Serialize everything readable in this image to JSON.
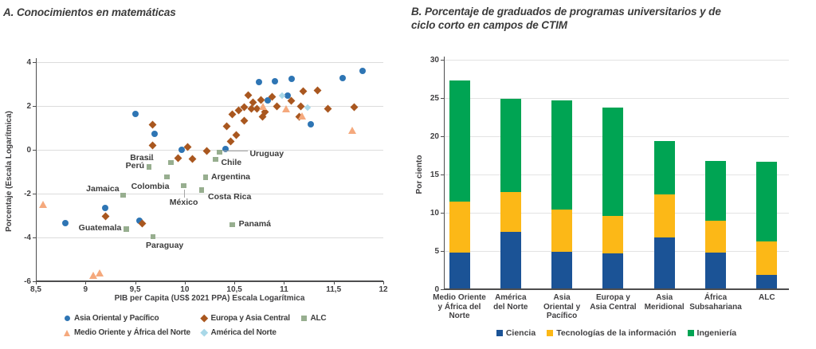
{
  "panel_a": {
    "title": "A. Conocimientos en matemáticas",
    "x_axis_label": "PIB per Capita (US$ 2021 PPA) Escala Logarítmica",
    "y_axis_label": "Porcentaje (Escala Logarítmica)"
  },
  "panel_b": {
    "title": "B. Porcentaje de graduados de programas universitarios y de ciclo corto en campos de CTIM",
    "y_axis_label": "Por ciento"
  },
  "chart_data": [
    {
      "type": "scatter",
      "title": "A. Conocimientos en matemáticas",
      "xlabel": "PIB per Capita (US$ 2021 PPA) Escala Logarítmica",
      "ylabel": "Porcentaje (Escala Logarítmica)",
      "xlim": [
        8.5,
        12
      ],
      "ylim": [
        -6,
        4
      ],
      "x_ticks": [
        8.5,
        9,
        9.5,
        10,
        10.5,
        11,
        11.5,
        12
      ],
      "x_tick_labels": [
        "8,5",
        "9",
        "9,5",
        "10",
        "10,5",
        "11",
        "11,5",
        "12"
      ],
      "y_ticks": [
        4,
        2,
        0,
        -2,
        -4,
        -6
      ],
      "y_tick_labels": [
        "4",
        "2",
        "0",
        "-2",
        "-4",
        "-6"
      ],
      "grid": true,
      "legend_position": "bottom",
      "series": [
        {
          "name": "Asia Oriental y Pacífico",
          "marker": "circle",
          "color": "#2e75b4",
          "points": [
            [
              8.8,
              -3.35
            ],
            [
              9.2,
              -2.64
            ],
            [
              9.5,
              1.65
            ],
            [
              9.54,
              -3.23
            ],
            [
              9.7,
              0.74
            ],
            [
              9.97,
              0.0
            ],
            [
              10.41,
              0.03
            ],
            [
              10.75,
              3.08
            ],
            [
              10.84,
              2.27
            ],
            [
              10.91,
              3.11
            ],
            [
              11.04,
              2.47
            ],
            [
              11.08,
              3.24
            ],
            [
              11.27,
              1.15
            ],
            [
              11.59,
              3.27
            ],
            [
              11.79,
              3.59
            ]
          ]
        },
        {
          "name": "Europa y Asia Central",
          "marker": "diamond",
          "color": "#a9571f",
          "points": [
            [
              9.2,
              -3.02
            ],
            [
              9.57,
              -3.38
            ],
            [
              9.68,
              1.14
            ],
            [
              9.68,
              0.21
            ],
            [
              9.93,
              -0.37
            ],
            [
              10.03,
              0.12
            ],
            [
              10.08,
              -0.43
            ],
            [
              10.22,
              -0.06
            ],
            [
              10.42,
              1.08
            ],
            [
              10.46,
              0.39
            ],
            [
              10.48,
              1.63
            ],
            [
              10.52,
              0.68
            ],
            [
              10.54,
              1.81
            ],
            [
              10.6,
              1.95
            ],
            [
              10.6,
              1.33
            ],
            [
              10.64,
              2.5
            ],
            [
              10.67,
              1.87
            ],
            [
              10.69,
              2.17
            ],
            [
              10.73,
              1.88
            ],
            [
              10.77,
              2.28
            ],
            [
              10.78,
              1.5
            ],
            [
              10.81,
              1.72
            ],
            [
              10.88,
              2.42
            ],
            [
              10.93,
              1.97
            ],
            [
              11.07,
              2.23
            ],
            [
              11.15,
              1.51
            ],
            [
              11.17,
              2.0
            ],
            [
              11.19,
              2.68
            ],
            [
              11.34,
              2.71
            ],
            [
              11.44,
              1.89
            ],
            [
              11.71,
              1.93
            ]
          ]
        },
        {
          "name": "ALC",
          "marker": "square",
          "color": "#97ae8f",
          "points": [
            {
              "x": 9.86,
              "y": -0.59,
              "label": "Brasil",
              "align": "right",
              "dx": -22,
              "dy": -11,
              "line": {
                "dx": -21,
                "dy": -4,
                "w": 16,
                "h": 1
              }
            },
            {
              "x": 9.64,
              "y": -0.78,
              "label": "Perú",
              "align": "right",
              "dx": -6,
              "dy": -6
            },
            {
              "x": 10.35,
              "y": -0.1,
              "label": "Uruguay",
              "align": "left",
              "dx": 38,
              "dy": -3,
              "line": {
                "dx": 5,
                "dy": -2,
                "w": 31,
                "h": 1
              }
            },
            {
              "x": 10.31,
              "y": -0.44,
              "label": "Chile",
              "align": "left",
              "dx": 7,
              "dy": -1
            },
            {
              "x": 10.21,
              "y": -1.26,
              "label": "Argentina",
              "align": "left",
              "dx": 7,
              "dy": -6
            },
            {
              "x": 9.82,
              "y": -1.23,
              "label": "Colombia",
              "align": "right",
              "dx": 3,
              "dy": 7
            },
            {
              "x": 9.99,
              "y": -1.63,
              "label": "México",
              "align": "center",
              "dx": 0,
              "dy": 16,
              "line": {
                "dx": 0,
                "dy": 5,
                "w": 1,
                "h": 10
              }
            },
            {
              "x": 10.17,
              "y": -1.83,
              "label": "Costa Rica",
              "align": "left",
              "dx": 8,
              "dy": 4
            },
            {
              "x": 9.38,
              "y": -2.07,
              "label": "Jamaica",
              "align": "right",
              "dx": -5,
              "dy": -13
            },
            {
              "x": 9.41,
              "y": -3.61,
              "label": "Guatemala",
              "align": "right",
              "dx": -6,
              "dy": -6
            },
            {
              "x": 9.68,
              "y": -3.97,
              "label": "Paraguay",
              "align": "left",
              "dx": -9,
              "dy": 6
            },
            {
              "x": 10.48,
              "y": -3.41,
              "label": "Panamá",
              "align": "left",
              "dx": 8,
              "dy": -6
            }
          ]
        },
        {
          "name": "Medio Oriente y África del Norte",
          "marker": "triangle",
          "color": "#f5a97d",
          "points": [
            [
              8.57,
              -2.5
            ],
            [
              9.08,
              -5.71
            ],
            [
              9.14,
              -5.6
            ],
            [
              10.79,
              1.99
            ],
            [
              11.02,
              1.86
            ],
            [
              11.18,
              1.56
            ],
            [
              11.69,
              0.9
            ]
          ]
        },
        {
          "name": "América del Norte",
          "marker": "diamond-small",
          "color": "#a9d8e8",
          "points": [
            [
              10.98,
              2.47
            ],
            [
              11.24,
              1.93
            ]
          ]
        }
      ]
    },
    {
      "type": "bar",
      "stacked": true,
      "title": "B. Porcentaje de graduados de programas universitarios y de ciclo corto en campos de CTIM",
      "xlabel": "",
      "ylabel": "Por ciento",
      "ylim": [
        0,
        30
      ],
      "y_ticks": [
        0,
        5,
        10,
        15,
        20,
        25,
        30
      ],
      "grid": true,
      "legend_position": "bottom",
      "categories": [
        "Medio Oriente y África del Norte",
        "América del Norte",
        "Asia Oriental y Pacífico",
        "Europa y Asia Central",
        "Asia Meridional",
        "África Subsahariana",
        "ALC"
      ],
      "category_lines": [
        [
          "Medio Oriente",
          "y África del",
          "Norte"
        ],
        [
          "América",
          "del Norte"
        ],
        [
          "Asia",
          "Oriental y",
          "Pacífico"
        ],
        [
          "Europa y",
          "Asia Central"
        ],
        [
          "Asia",
          "Meridional"
        ],
        [
          "África",
          "Subsahariana"
        ],
        [
          "ALC"
        ]
      ],
      "series": [
        {
          "name": "Ciencia",
          "color": "#1b5396",
          "values": [
            4.8,
            7.5,
            4.9,
            4.7,
            6.8,
            4.8,
            1.9
          ]
        },
        {
          "name": "Tecnologías de la información",
          "color": "#fcb817",
          "values": [
            6.7,
            5.2,
            5.5,
            4.9,
            5.6,
            4.2,
            4.3
          ]
        },
        {
          "name": "Ingeniería",
          "color": "#00a453",
          "values": [
            15.8,
            12.2,
            14.3,
            14.2,
            7.0,
            7.8,
            10.5
          ]
        }
      ],
      "totals": [
        27.3,
        24.9,
        24.7,
        23.8,
        19.4,
        16.8,
        16.7
      ]
    }
  ]
}
